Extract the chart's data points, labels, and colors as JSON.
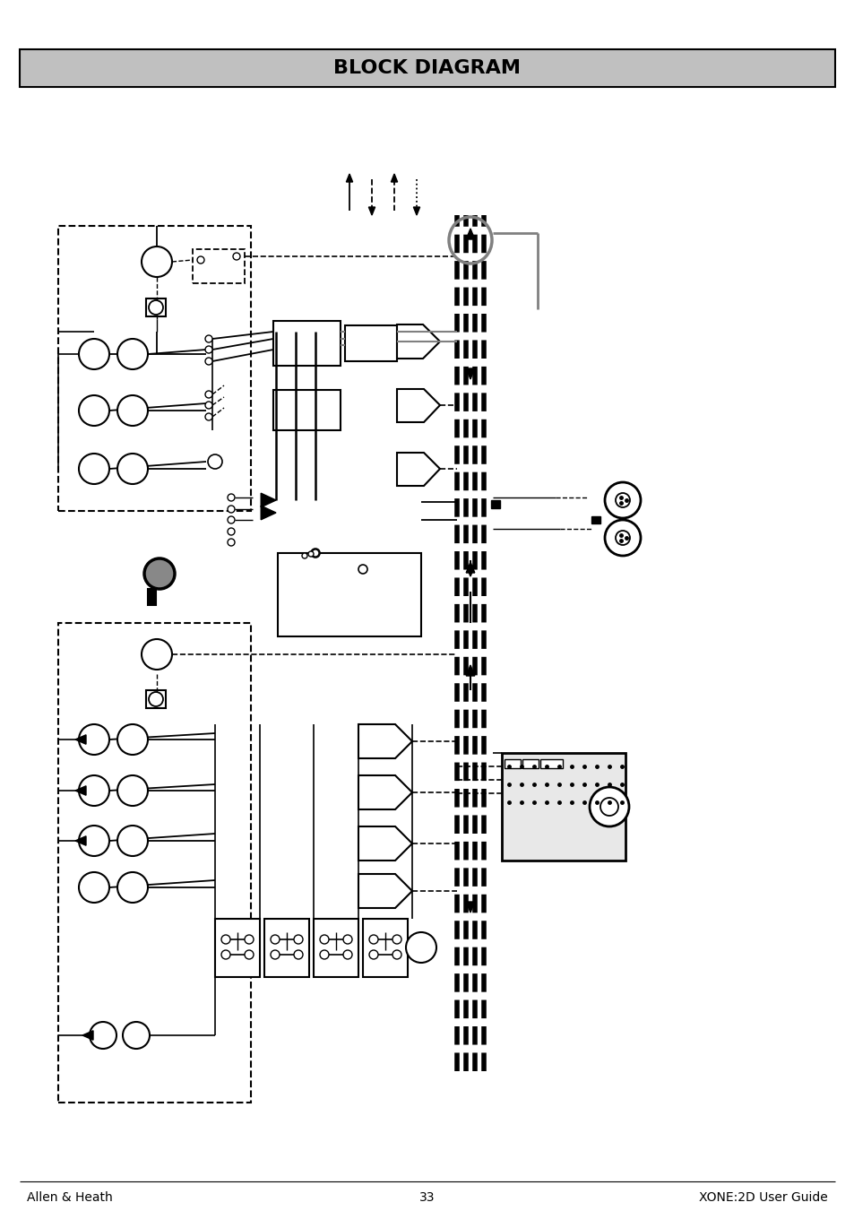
{
  "title": "BLOCK DIAGRAM",
  "title_bg": "#c0c0c0",
  "footer_left": "Allen & Heath",
  "footer_center": "33",
  "footer_right": "XONE:2D User Guide",
  "page_bg": "#ffffff",
  "fig_width": 9.54,
  "fig_height": 13.51,
  "dpi": 100
}
